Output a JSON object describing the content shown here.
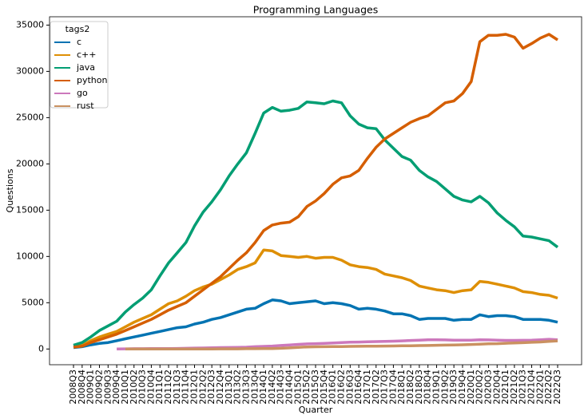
{
  "chart_data": {
    "type": "line",
    "title": "Programming Languages",
    "x_label": "Quarter",
    "y_label": "Questions",
    "legend_title": "tags2",
    "legend_position": "upper left",
    "categories": [
      "2008Q3",
      "2008Q4",
      "2009Q1",
      "2009Q2",
      "2009Q3",
      "2009Q4",
      "2010Q1",
      "2010Q2",
      "2010Q3",
      "2010Q4",
      "2011Q1",
      "2011Q2",
      "2011Q3",
      "2011Q4",
      "2012Q1",
      "2012Q2",
      "2012Q3",
      "2012Q4",
      "2013Q1",
      "2013Q2",
      "2013Q3",
      "2013Q4",
      "2014Q1",
      "2014Q2",
      "2014Q3",
      "2014Q4",
      "2015Q1",
      "2015Q2",
      "2015Q3",
      "2015Q4",
      "2016Q1",
      "2016Q2",
      "2016Q3",
      "2016Q4",
      "2017Q1",
      "2017Q2",
      "2017Q3",
      "2017Q4",
      "2018Q1",
      "2018Q2",
      "2018Q3",
      "2018Q4",
      "2019Q1",
      "2019Q2",
      "2019Q3",
      "2019Q4",
      "2020Q1",
      "2020Q2",
      "2020Q3",
      "2020Q4",
      "2021Q1",
      "2021Q2",
      "2021Q3",
      "2021Q4",
      "2022Q1",
      "2022Q2",
      "2022Q3"
    ],
    "series": [
      {
        "name": "c",
        "color": "#0173b2",
        "values": [
          150,
          250,
          450,
          600,
          700,
          900,
          1100,
          1300,
          1500,
          1700,
          1900,
          2100,
          2300,
          2400,
          2700,
          2900,
          3200,
          3400,
          3700,
          4000,
          4300,
          4400,
          4900,
          5300,
          5200,
          4900,
          5000,
          5100,
          5200,
          4900,
          5000,
          4900,
          4700,
          4300,
          4400,
          4300,
          4100,
          3800,
          3800,
          3600,
          3200,
          3300,
          3300,
          3300,
          3100,
          3200,
          3200,
          3700,
          3500,
          3600,
          3600,
          3500,
          3200,
          3200,
          3200,
          3100,
          2900
        ]
      },
      {
        "name": "c++",
        "color": "#de8f05",
        "values": [
          300,
          400,
          900,
          1300,
          1600,
          1900,
          2400,
          2900,
          3300,
          3700,
          4300,
          4900,
          5200,
          5700,
          6300,
          6700,
          7000,
          7500,
          8000,
          8600,
          8900,
          9300,
          10700,
          10600,
          10100,
          10000,
          9900,
          10000,
          9800,
          9900,
          9900,
          9600,
          9100,
          8900,
          8800,
          8600,
          8100,
          7900,
          7700,
          7400,
          6800,
          6600,
          6400,
          6300,
          6100,
          6300,
          6400,
          7300,
          7200,
          7000,
          6800,
          6600,
          6200,
          6100,
          5900,
          5800,
          5500
        ]
      },
      {
        "name": "java",
        "color": "#029e73",
        "values": [
          400,
          700,
          1300,
          2000,
          2500,
          3000,
          4000,
          4800,
          5500,
          6400,
          7900,
          9300,
          10400,
          11500,
          13300,
          14800,
          15900,
          17200,
          18700,
          20000,
          21200,
          23300,
          25500,
          26100,
          25700,
          25800,
          26000,
          26700,
          26600,
          26500,
          26800,
          26600,
          25200,
          24300,
          23900,
          23800,
          22600,
          21700,
          20800,
          20400,
          19300,
          18600,
          18100,
          17300,
          16500,
          16100,
          15900,
          16500,
          15800,
          14700,
          13900,
          13200,
          12200,
          12100,
          11900,
          11700,
          11000
        ]
      },
      {
        "name": "python",
        "color": "#d55e00",
        "values": [
          200,
          300,
          700,
          1000,
          1300,
          1600,
          2000,
          2400,
          2800,
          3200,
          3700,
          4200,
          4600,
          5000,
          5700,
          6400,
          7100,
          7800,
          8700,
          9600,
          10400,
          11500,
          12800,
          13400,
          13600,
          13700,
          14300,
          15400,
          16000,
          16800,
          17800,
          18500,
          18700,
          19300,
          20600,
          21800,
          22700,
          23300,
          23900,
          24500,
          24900,
          25200,
          25900,
          26600,
          26800,
          27600,
          28900,
          33200,
          33900,
          33900,
          34000,
          33700,
          32500,
          33000,
          33600,
          34000,
          33400
        ]
      },
      {
        "name": "go",
        "color": "#cc78bc",
        "values": [
          null,
          null,
          null,
          null,
          null,
          0,
          20,
          30,
          30,
          40,
          40,
          50,
          60,
          80,
          100,
          110,
          130,
          150,
          160,
          180,
          200,
          250,
          280,
          320,
          380,
          440,
          500,
          550,
          580,
          600,
          650,
          700,
          730,
          750,
          780,
          800,
          820,
          840,
          880,
          920,
          960,
          1000,
          1000,
          980,
          960,
          950,
          950,
          1000,
          980,
          950,
          930,
          930,
          940,
          960,
          1000,
          1050,
          1000
        ]
      },
      {
        "name": "rust",
        "color": "#ca9161",
        "values": [
          null,
          null,
          null,
          null,
          null,
          null,
          0,
          0,
          0,
          0,
          0,
          0,
          0,
          0,
          10,
          10,
          10,
          20,
          20,
          20,
          30,
          30,
          40,
          50,
          80,
          120,
          180,
          220,
          240,
          250,
          260,
          270,
          280,
          290,
          300,
          310,
          320,
          330,
          340,
          350,
          370,
          380,
          400,
          420,
          440,
          460,
          490,
          520,
          560,
          580,
          620,
          650,
          680,
          720,
          760,
          820,
          880
        ]
      }
    ],
    "ylim": [
      -1700,
      35900
    ],
    "yticks": [
      0,
      5000,
      10000,
      15000,
      20000,
      25000,
      30000,
      35000
    ]
  }
}
